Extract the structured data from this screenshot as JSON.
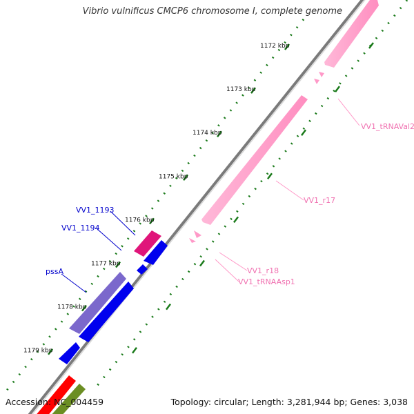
{
  "title": "Vibrio vulnificus CMCP6 chromosome I, complete genome",
  "footer": {
    "accession": "Accession: NC_004459",
    "summary": "Topology: circular; Length: 3,281,944 bp; Genes: 3,038"
  },
  "ruler": [
    {
      "label": "1172 kbp",
      "kbp": 1172
    },
    {
      "label": "1173 kbp",
      "kbp": 1173
    },
    {
      "label": "1174 kbp",
      "kbp": 1174
    },
    {
      "label": "1175 kbp",
      "kbp": 1175
    },
    {
      "label": "1176 kbp",
      "kbp": 1176
    },
    {
      "label": "1177 kbp",
      "kbp": 1177
    },
    {
      "label": "1178 kbp",
      "kbp": 1178
    },
    {
      "label": "1179 kbp",
      "kbp": 1179
    }
  ],
  "gene_labels": {
    "forward": [
      "VV1_1193",
      "VV1_1194",
      "pssA"
    ],
    "reverse": [
      "VV1_tRNAVal2",
      "VV1_r17",
      "VV1_r18",
      "VV1_tRNAAsp1"
    ]
  },
  "colors": {
    "backbone": "#808080",
    "ruler_ticks": "#1a7a1a",
    "forward_cds": "#0000ee",
    "forward_gene_purple": "#7b68cc",
    "forward_gene_magenta": "#e0157a",
    "reverse_rna": "#ff99c8",
    "reverse_label": "#f070b0",
    "forward_label": "#0000cc",
    "outer_red": "#ff0000",
    "outer_green": "#6b8e23"
  }
}
